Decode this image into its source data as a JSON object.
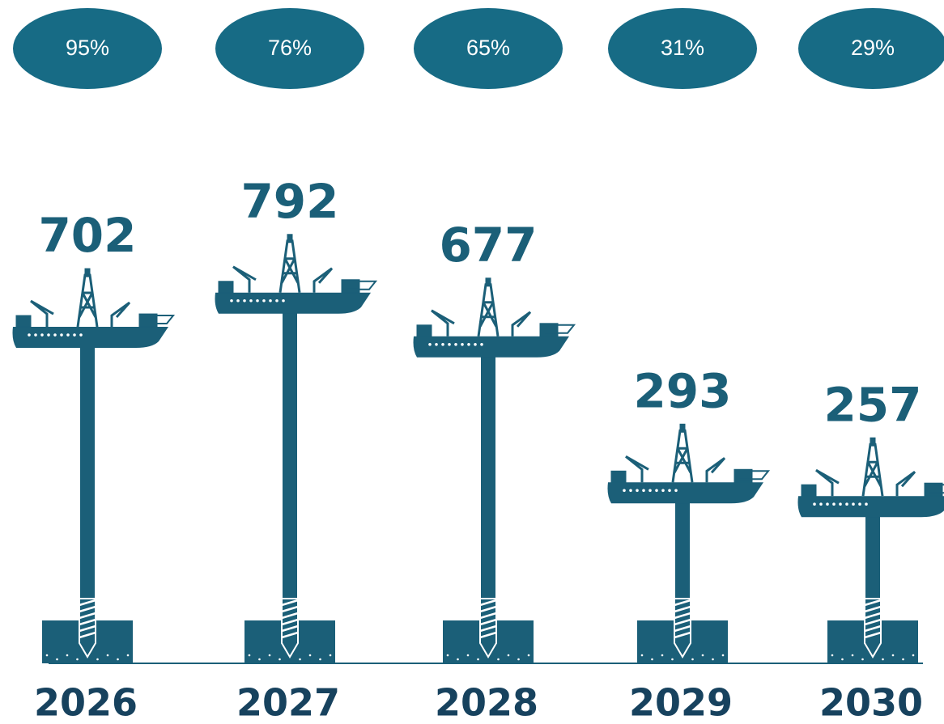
{
  "chart_data": {
    "type": "bar",
    "categories": [
      "2026",
      "2027",
      "2028",
      "2029",
      "2030"
    ],
    "series": [
      {
        "color": "#1b5f78",
        "values": [
          702,
          792,
          677,
          293,
          257
        ]
      },
      {
        "color": "#176b85",
        "values": [
          95,
          76,
          65,
          31,
          29
        ],
        "value_labels": [
          "95%",
          "76%",
          "65%",
          "31%",
          "29%"
        ]
      }
    ]
  }
}
